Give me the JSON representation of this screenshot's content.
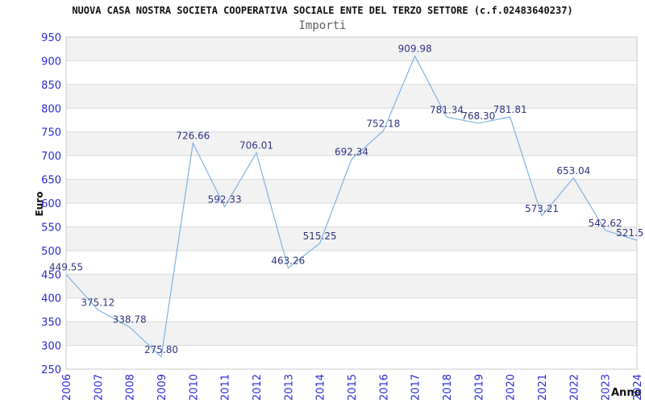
{
  "title": "NUOVA CASA NOSTRA SOCIETA COOPERATIVA SOCIALE ENTE DEL TERZO SETTORE (c.f.02483640237)",
  "subtitle": "Importi",
  "chart_data": {
    "type": "line",
    "title": "Importi",
    "xlabel": "Anno",
    "ylabel": "Euro",
    "categories": [
      "2006",
      "2007",
      "2008",
      "2009",
      "2010",
      "2011",
      "2012",
      "2013",
      "2014",
      "2015",
      "2016",
      "2017",
      "2018",
      "2019",
      "2020",
      "2021",
      "2022",
      "2023",
      "2024"
    ],
    "values": [
      449.55,
      375.12,
      338.78,
      275.8,
      726.66,
      592.33,
      706.01,
      463.26,
      515.25,
      692.34,
      752.18,
      909.98,
      781.34,
      768.3,
      781.81,
      573.21,
      653.04,
      542.62,
      521.5
    ],
    "point_labels": [
      "449.55",
      "375.12",
      "338.78",
      "275.80",
      "726.66",
      "592.33",
      "706.01",
      "463.26",
      "515.25",
      "692.34",
      "752.18",
      "909.98",
      "781.34",
      "768.30",
      "781.81",
      "573.21",
      "653.04",
      "542.62",
      "521.5"
    ],
    "ylim": [
      250,
      950
    ],
    "ytick_step": 50,
    "grid": "horizontal-bands",
    "legend": "none",
    "colors": {
      "line": "#7fb2e5",
      "point_label": "#333380",
      "tick_label": "#2a2ad4",
      "band_fill": "#f2f2f2",
      "gridline": "#d9d9d9",
      "plot_border": "#c9c9c9",
      "title": "#111111",
      "subtitle": "#5f5f5f"
    }
  }
}
